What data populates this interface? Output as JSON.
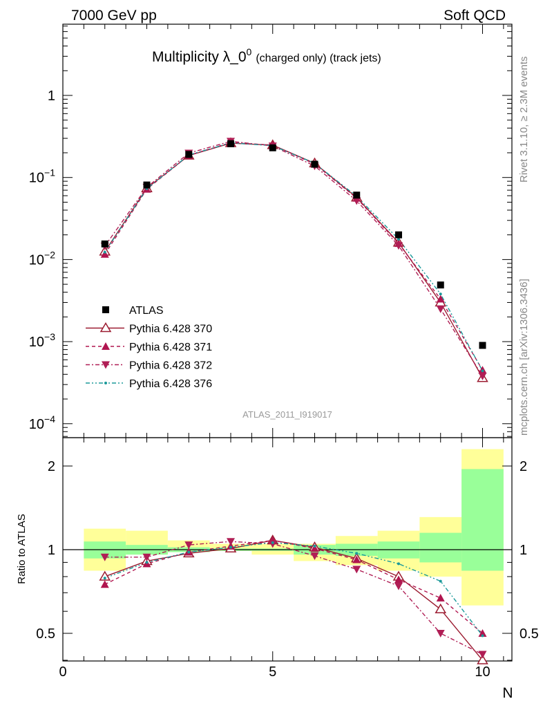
{
  "header": {
    "left": "7000 GeV pp",
    "right": "Soft QCD"
  },
  "plot": {
    "title_main": "Multiplicity λ_0",
    "title_sup": "0",
    "title_suffix": "(charged only) (track jets)",
    "watermark": "ATLAS_2011_I919017",
    "side_top": "Rivet 3.1.10, ≥ 2.3M events",
    "side_bottom": "mcplots.cern.ch [arXiv:1306.3436]"
  },
  "chart_data": {
    "type": "scatter",
    "x_values": [
      1,
      2,
      3,
      4,
      5,
      6,
      7,
      8,
      9,
      10
    ],
    "xlabel": "N",
    "ylabel_ratio": "Ratio to ATLAS",
    "xlim": [
      0,
      10.7
    ],
    "ylim_main": [
      5e-05,
      5
    ],
    "ylim_ratio": [
      0.35,
      2.3
    ],
    "yscale_main": "log",
    "yscale_ratio": "log",
    "x_ticks": [
      "0",
      "5",
      "10"
    ],
    "y_ticks_main": [
      {
        "base": "1",
        "exp": ""
      },
      {
        "base": "10",
        "exp": "−1"
      },
      {
        "base": "10",
        "exp": "−2"
      },
      {
        "base": "10",
        "exp": "−3"
      },
      {
        "base": "10",
        "exp": "−4"
      }
    ],
    "y_ticks_ratio": [
      "2",
      "1",
      "0.5"
    ],
    "legend_position": "middle-left",
    "data": {
      "name": "ATLAS",
      "values": [
        0.0155,
        0.081,
        0.191,
        0.258,
        0.23,
        0.145,
        0.061,
        0.02,
        0.0049,
        0.0009
      ]
    },
    "series": [
      {
        "name": "Pythia 6.428 370",
        "color": "#9b1b30",
        "style": "solid",
        "marker": "triangle-open",
        "values": [
          0.0125,
          0.074,
          0.185,
          0.262,
          0.248,
          0.149,
          0.057,
          0.0161,
          0.003,
          0.00036
        ],
        "ratio": [
          0.8,
          0.91,
          0.97,
          1.01,
          1.08,
          1.02,
          0.93,
          0.8,
          0.61,
          0.4
        ]
      },
      {
        "name": "Pythia 6.428 371",
        "color": "#b0154f",
        "style": "dashed",
        "marker": "triangle-up",
        "values": [
          0.0116,
          0.072,
          0.186,
          0.266,
          0.248,
          0.146,
          0.056,
          0.0157,
          0.0033,
          0.00045
        ],
        "ratio": [
          0.75,
          0.89,
          0.98,
          1.03,
          1.08,
          1.01,
          0.92,
          0.78,
          0.67,
          0.5
        ]
      },
      {
        "name": "Pythia 6.428 372",
        "color": "#b01e55",
        "style": "dashdot",
        "marker": "triangle-down",
        "values": [
          0.0146,
          0.076,
          0.198,
          0.276,
          0.242,
          0.138,
          0.052,
          0.0148,
          0.0025,
          0.00038
        ],
        "ratio": [
          0.94,
          0.94,
          1.04,
          1.07,
          1.05,
          0.95,
          0.85,
          0.74,
          0.5,
          0.42
        ]
      },
      {
        "name": "Pythia 6.428 376",
        "color": "#1a9999",
        "style": "dashdotdot",
        "marker": "dot",
        "values": [
          0.0123,
          0.073,
          0.188,
          0.264,
          0.244,
          0.149,
          0.059,
          0.0177,
          0.0038,
          0.00044
        ],
        "ratio": [
          0.79,
          0.9,
          0.98,
          1.02,
          1.06,
          1.03,
          0.97,
          0.89,
          0.77,
          0.49
        ]
      }
    ],
    "uncertainty_bands": {
      "inner_green": [
        [
          0.93,
          1.07
        ],
        [
          0.96,
          1.04
        ],
        [
          0.98,
          1.02
        ],
        [
          0.99,
          1.01
        ],
        [
          0.99,
          1.01
        ],
        [
          0.96,
          1.04
        ],
        [
          0.95,
          1.05
        ],
        [
          0.93,
          1.07
        ],
        [
          0.9,
          1.15
        ],
        [
          0.84,
          1.95
        ]
      ],
      "outer_yellow": [
        [
          0.84,
          1.19
        ],
        [
          0.96,
          1.17
        ],
        [
          0.98,
          1.08
        ],
        [
          0.99,
          1.05
        ],
        [
          0.96,
          1.05
        ],
        [
          0.91,
          1.05
        ],
        [
          0.88,
          1.12
        ],
        [
          0.84,
          1.17
        ],
        [
          0.8,
          1.31
        ],
        [
          0.63,
          2.3
        ]
      ]
    }
  }
}
